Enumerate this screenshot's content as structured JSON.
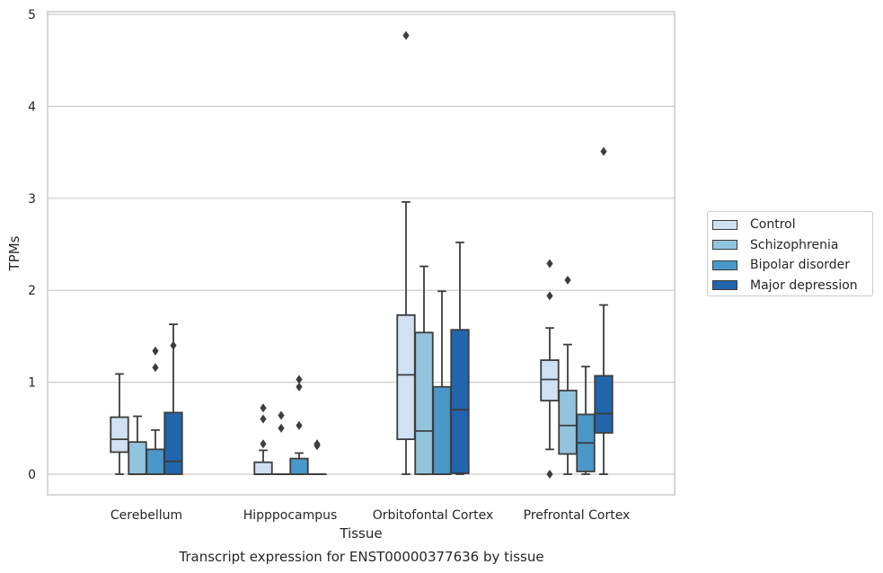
{
  "chart_data": {
    "type": "box",
    "categories": [
      "Cerebellum",
      "Hipppocampus",
      "Orbitofontal Cortex",
      "Prefrontal Cortex"
    ],
    "xlabel": "Tissue",
    "ylabel": "TPMs",
    "ylim": [
      -0.22,
      5.02
    ],
    "yticks": [
      0,
      1,
      2,
      3,
      4,
      5
    ],
    "grid": "y",
    "legend_position": "right",
    "series": [
      {
        "name": "Control",
        "color": "#cfe1f2",
        "boxes": [
          {
            "min": 0.0,
            "q1": 0.24,
            "median": 0.38,
            "q3": 0.62,
            "max": 1.09,
            "outliers": []
          },
          {
            "min": 0.0,
            "q1": 0.0,
            "median": 0.0,
            "q3": 0.13,
            "max": 0.26,
            "outliers": [
              0.33,
              0.6,
              0.72
            ]
          },
          {
            "min": 0.0,
            "q1": 0.38,
            "median": 1.08,
            "q3": 1.73,
            "max": 2.96,
            "outliers": [
              4.77
            ]
          },
          {
            "min": 0.27,
            "q1": 0.8,
            "median": 1.03,
            "q3": 1.24,
            "max": 1.59,
            "outliers": [
              0.0,
              1.94,
              2.29
            ]
          }
        ]
      },
      {
        "name": "Schizophrenia",
        "color": "#93c4de",
        "boxes": [
          {
            "min": 0.0,
            "q1": 0.0,
            "median": 0.0,
            "q3": 0.35,
            "max": 0.63,
            "outliers": []
          },
          {
            "min": 0.0,
            "q1": 0.0,
            "median": 0.0,
            "q3": 0.0,
            "max": 0.0,
            "outliers": [
              0.5,
              0.64
            ]
          },
          {
            "min": 0.0,
            "q1": 0.0,
            "median": 0.47,
            "q3": 1.54,
            "max": 2.26,
            "outliers": []
          },
          {
            "min": 0.0,
            "q1": 0.22,
            "median": 0.53,
            "q3": 0.91,
            "max": 1.41,
            "outliers": [
              2.11
            ]
          }
        ]
      },
      {
        "name": "Bipolar disorder",
        "color": "#4a98c9",
        "boxes": [
          {
            "min": 0.0,
            "q1": 0.0,
            "median": 0.0,
            "q3": 0.27,
            "max": 0.48,
            "outliers": [
              1.16,
              1.34
            ]
          },
          {
            "min": 0.0,
            "q1": 0.0,
            "median": 0.0,
            "q3": 0.17,
            "max": 0.23,
            "outliers": [
              0.53,
              0.95,
              1.03
            ]
          },
          {
            "min": 0.0,
            "q1": 0.0,
            "median": 0.0,
            "q3": 0.95,
            "max": 1.99,
            "outliers": []
          },
          {
            "min": 0.0,
            "q1": 0.03,
            "median": 0.34,
            "q3": 0.65,
            "max": 1.17,
            "outliers": []
          }
        ]
      },
      {
        "name": "Major depression",
        "color": "#2166ac",
        "boxes": [
          {
            "min": 0.0,
            "q1": 0.0,
            "median": 0.14,
            "q3": 0.67,
            "max": 1.63,
            "outliers": [
              1.4
            ]
          },
          {
            "min": 0.0,
            "q1": 0.0,
            "median": 0.0,
            "q3": 0.0,
            "max": 0.0,
            "outliers": [
              0.31,
              0.33
            ]
          },
          {
            "min": 0.0,
            "q1": 0.01,
            "median": 0.7,
            "q3": 1.57,
            "max": 2.52,
            "outliers": []
          },
          {
            "min": 0.0,
            "q1": 0.45,
            "median": 0.66,
            "q3": 1.07,
            "max": 1.84,
            "outliers": [
              3.51
            ]
          }
        ]
      }
    ]
  },
  "caption": "Transcript expression for ENST00000377636 by tissue"
}
